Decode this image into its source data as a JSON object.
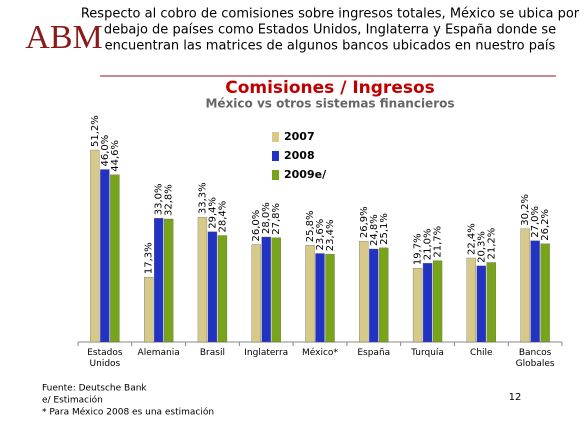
{
  "header": {
    "logo": "ABM",
    "lines": [
      "Respecto al cobro de comisiones sobre ingresos totales, México se ubica por",
      "debajo de países como Estados Unidos, Inglaterra y España donde se",
      "encuentran las matrices de algunos bancos ubicados en nuestro país"
    ]
  },
  "chart_data": {
    "type": "bar",
    "title": "Comisiones / Ingresos",
    "subtitle": "México vs otros sistemas financieros",
    "categories": [
      "Estados Unidos",
      "Alemania",
      "Brasil",
      "Inglaterra",
      "México*",
      "España",
      "Turquía",
      "Chile",
      "Bancos Globales"
    ],
    "series": [
      {
        "name": "2007",
        "color": "#d6c98a",
        "values": [
          51.2,
          17.3,
          33.3,
          26.0,
          25.8,
          26.9,
          19.7,
          22.4,
          30.2
        ],
        "value_labels": [
          "51,2%",
          "17,3%",
          "33,3%",
          "26,0%",
          "25,8%",
          "26,9%",
          "19,7%",
          "22,4%",
          "30,2%"
        ]
      },
      {
        "name": "2008",
        "color": "#2233c4",
        "values": [
          46.0,
          33.0,
          29.4,
          28.0,
          23.6,
          24.8,
          21.0,
          20.3,
          27.0
        ],
        "value_labels": [
          "46,0%",
          "33,0%",
          "29,4%",
          "28,0%",
          "23,6%",
          "24,8%",
          "21,0%",
          "20,3%",
          "27,0%"
        ]
      },
      {
        "name": "2009e/",
        "color": "#78a41a",
        "values": [
          44.6,
          32.8,
          28.4,
          27.8,
          23.4,
          25.1,
          21.7,
          21.2,
          26.2
        ],
        "value_labels": [
          "44,6%",
          "32,8%",
          "28,4%",
          "27,8%",
          "23,4%",
          "25,1%",
          "21,7%",
          "21,2%",
          "26,2%"
        ]
      }
    ],
    "ylim": [
      0,
      60
    ],
    "legend": "top-center"
  },
  "footnotes": [
    "Fuente: Deutsche Bank",
    "e/ Estimación",
    "* Para México 2008 es una estimación"
  ],
  "page_number": "12"
}
